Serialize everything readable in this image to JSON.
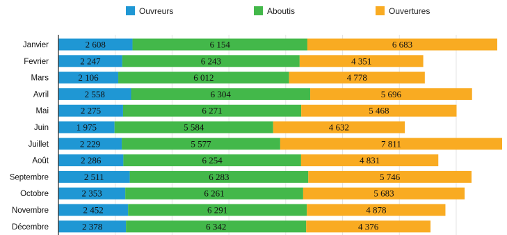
{
  "chart_data": {
    "type": "bar",
    "orientation": "horizontal",
    "stacked": true,
    "title": "",
    "xlabel": "",
    "ylabel": "",
    "xlim": [
      0,
      16000
    ],
    "grid": true,
    "legend_position": "top",
    "categories": [
      "Janvier",
      "Fevrier",
      "Mars",
      "Avril",
      "Mai",
      "Juin",
      "Juillet",
      "Août",
      "Septembre",
      "Octobre",
      "Novembre",
      "Décembre"
    ],
    "series": [
      {
        "name": "Ouvreurs",
        "color": "#1f97d4",
        "values": [
          2608,
          2247,
          2106,
          2558,
          2275,
          1975,
          2229,
          2286,
          2511,
          2353,
          2452,
          2378
        ],
        "labels": [
          "2 608",
          "2 247",
          "2 106",
          "2 558",
          "2 275",
          "1 975",
          "2 229",
          "2 286",
          "2 511",
          "2 353",
          "2 452",
          "2 378"
        ]
      },
      {
        "name": "Aboutis",
        "color": "#43b84a",
        "values": [
          6154,
          6243,
          6012,
          6304,
          6271,
          5584,
          5577,
          6254,
          6283,
          6261,
          6291,
          6342
        ],
        "labels": [
          "6 154",
          "6 243",
          "6 012",
          "6 304",
          "6 271",
          "5 584",
          "5 577",
          "6 254",
          "6 283",
          "6 261",
          "6 291",
          "6 342"
        ]
      },
      {
        "name": "Ouvertures",
        "color": "#f9ab22",
        "values": [
          6683,
          4351,
          4778,
          5696,
          5468,
          4632,
          7811,
          4831,
          5746,
          5683,
          4878,
          4376
        ],
        "labels": [
          "6 683",
          "4 351",
          "4 778",
          "5 696",
          "5 468",
          "4 632",
          "7 811",
          "4 831",
          "5 746",
          "5 683",
          "4 878",
          "4 376"
        ]
      }
    ]
  }
}
